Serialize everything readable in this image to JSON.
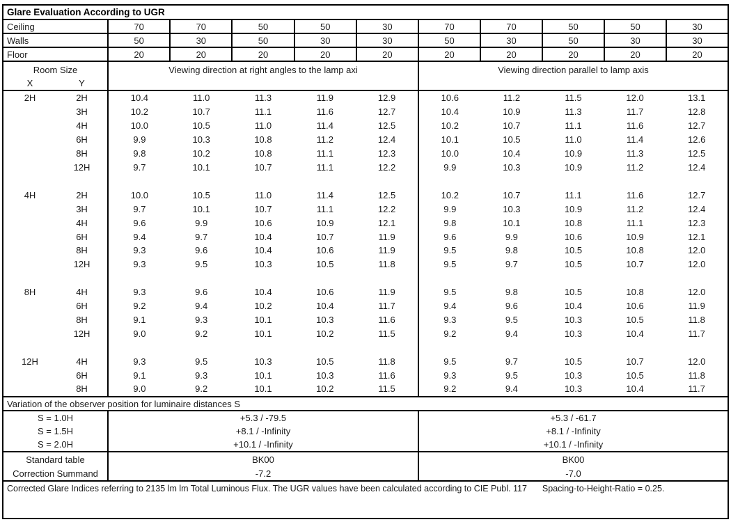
{
  "title": "Glare Evaluation According to UGR",
  "surfaces": {
    "rows": [
      {
        "label": "Ceiling",
        "values": [
          "70",
          "70",
          "50",
          "50",
          "30",
          "70",
          "70",
          "50",
          "50",
          "30"
        ]
      },
      {
        "label": "Walls",
        "values": [
          "50",
          "30",
          "50",
          "30",
          "30",
          "50",
          "30",
          "50",
          "30",
          "30"
        ]
      },
      {
        "label": "Floor",
        "values": [
          "20",
          "20",
          "20",
          "20",
          "20",
          "20",
          "20",
          "20",
          "20",
          "20"
        ]
      }
    ]
  },
  "header": {
    "room_size_label": "Room Size",
    "x_label": "X",
    "y_label": "Y",
    "left_group": "Viewing direction at right angles to the lamp axi",
    "right_group": "Viewing direction parallel to lamp axis"
  },
  "ugr_blocks": [
    {
      "x": "2H",
      "rows": [
        {
          "y": "2H",
          "left": [
            "10.4",
            "11.0",
            "11.3",
            "11.9",
            "12.9"
          ],
          "right": [
            "10.6",
            "11.2",
            "11.5",
            "12.0",
            "13.1"
          ]
        },
        {
          "y": "3H",
          "left": [
            "10.2",
            "10.7",
            "11.1",
            "11.6",
            "12.7"
          ],
          "right": [
            "10.4",
            "10.9",
            "11.3",
            "11.7",
            "12.8"
          ]
        },
        {
          "y": "4H",
          "left": [
            "10.0",
            "10.5",
            "11.0",
            "11.4",
            "12.5"
          ],
          "right": [
            "10.2",
            "10.7",
            "11.1",
            "11.6",
            "12.7"
          ]
        },
        {
          "y": "6H",
          "left": [
            "9.9",
            "10.3",
            "10.8",
            "11.2",
            "12.4"
          ],
          "right": [
            "10.1",
            "10.5",
            "11.0",
            "11.4",
            "12.6"
          ]
        },
        {
          "y": "8H",
          "left": [
            "9.8",
            "10.2",
            "10.8",
            "11.1",
            "12.3"
          ],
          "right": [
            "10.0",
            "10.4",
            "10.9",
            "11.3",
            "12.5"
          ]
        },
        {
          "y": "12H",
          "left": [
            "9.7",
            "10.1",
            "10.7",
            "11.1",
            "12.2"
          ],
          "right": [
            "9.9",
            "10.3",
            "10.9",
            "11.2",
            "12.4"
          ]
        }
      ]
    },
    {
      "x": "4H",
      "rows": [
        {
          "y": "2H",
          "left": [
            "10.0",
            "10.5",
            "11.0",
            "11.4",
            "12.5"
          ],
          "right": [
            "10.2",
            "10.7",
            "11.1",
            "11.6",
            "12.7"
          ]
        },
        {
          "y": "3H",
          "left": [
            "9.7",
            "10.1",
            "10.7",
            "11.1",
            "12.2"
          ],
          "right": [
            "9.9",
            "10.3",
            "10.9",
            "11.2",
            "12.4"
          ]
        },
        {
          "y": "4H",
          "left": [
            "9.6",
            "9.9",
            "10.6",
            "10.9",
            "12.1"
          ],
          "right": [
            "9.8",
            "10.1",
            "10.8",
            "11.1",
            "12.3"
          ]
        },
        {
          "y": "6H",
          "left": [
            "9.4",
            "9.7",
            "10.4",
            "10.7",
            "11.9"
          ],
          "right": [
            "9.6",
            "9.9",
            "10.6",
            "10.9",
            "12.1"
          ]
        },
        {
          "y": "8H",
          "left": [
            "9.3",
            "9.6",
            "10.4",
            "10.6",
            "11.9"
          ],
          "right": [
            "9.5",
            "9.8",
            "10.5",
            "10.8",
            "12.0"
          ]
        },
        {
          "y": "12H",
          "left": [
            "9.3",
            "9.5",
            "10.3",
            "10.5",
            "11.8"
          ],
          "right": [
            "9.5",
            "9.7",
            "10.5",
            "10.7",
            "12.0"
          ]
        }
      ]
    },
    {
      "x": "8H",
      "rows": [
        {
          "y": "4H",
          "left": [
            "9.3",
            "9.6",
            "10.4",
            "10.6",
            "11.9"
          ],
          "right": [
            "9.5",
            "9.8",
            "10.5",
            "10.8",
            "12.0"
          ]
        },
        {
          "y": "6H",
          "left": [
            "9.2",
            "9.4",
            "10.2",
            "10.4",
            "11.7"
          ],
          "right": [
            "9.4",
            "9.6",
            "10.4",
            "10.6",
            "11.9"
          ]
        },
        {
          "y": "8H",
          "left": [
            "9.1",
            "9.3",
            "10.1",
            "10.3",
            "11.6"
          ],
          "right": [
            "9.3",
            "9.5",
            "10.3",
            "10.5",
            "11.8"
          ]
        },
        {
          "y": "12H",
          "left": [
            "9.0",
            "9.2",
            "10.1",
            "10.2",
            "11.5"
          ],
          "right": [
            "9.2",
            "9.4",
            "10.3",
            "10.4",
            "11.7"
          ]
        }
      ]
    },
    {
      "x": "12H",
      "rows": [
        {
          "y": "4H",
          "left": [
            "9.3",
            "9.5",
            "10.3",
            "10.5",
            "11.8"
          ],
          "right": [
            "9.5",
            "9.7",
            "10.5",
            "10.7",
            "12.0"
          ]
        },
        {
          "y": "6H",
          "left": [
            "9.1",
            "9.3",
            "10.1",
            "10.3",
            "11.6"
          ],
          "right": [
            "9.3",
            "9.5",
            "10.3",
            "10.5",
            "11.8"
          ]
        },
        {
          "y": "8H",
          "left": [
            "9.0",
            "9.2",
            "10.1",
            "10.2",
            "11.5"
          ],
          "right": [
            "9.2",
            "9.4",
            "10.3",
            "10.4",
            "11.7"
          ]
        }
      ]
    }
  ],
  "variation": {
    "section_label": "Variation of the observer position for luminaire distances S",
    "rows": [
      {
        "label": "S = 1.0H",
        "left": "+5.3 / -79.5",
        "right": "+5.3 / -61.7"
      },
      {
        "label": "S = 1.5H",
        "left": "+8.1 / -Infinity",
        "right": "+8.1 / -Infinity"
      },
      {
        "label": "S = 2.0H",
        "left": "+10.1 / -Infinity",
        "right": "+10.1 / -Infinity"
      }
    ]
  },
  "summary": {
    "rows": [
      {
        "label": "Standard table",
        "left": "BK00",
        "right": "BK00"
      },
      {
        "label": "Correction Summand",
        "left": "-7.2",
        "right": "-7.0"
      }
    ]
  },
  "footer": {
    "text": "Corrected Glare Indices referring to 2135 lm lm Total Luminous Flux. The UGR values have been calculated according to CIE Publ. 117",
    "ratio": "Spacing-to-Height-Ratio = 0.25."
  }
}
